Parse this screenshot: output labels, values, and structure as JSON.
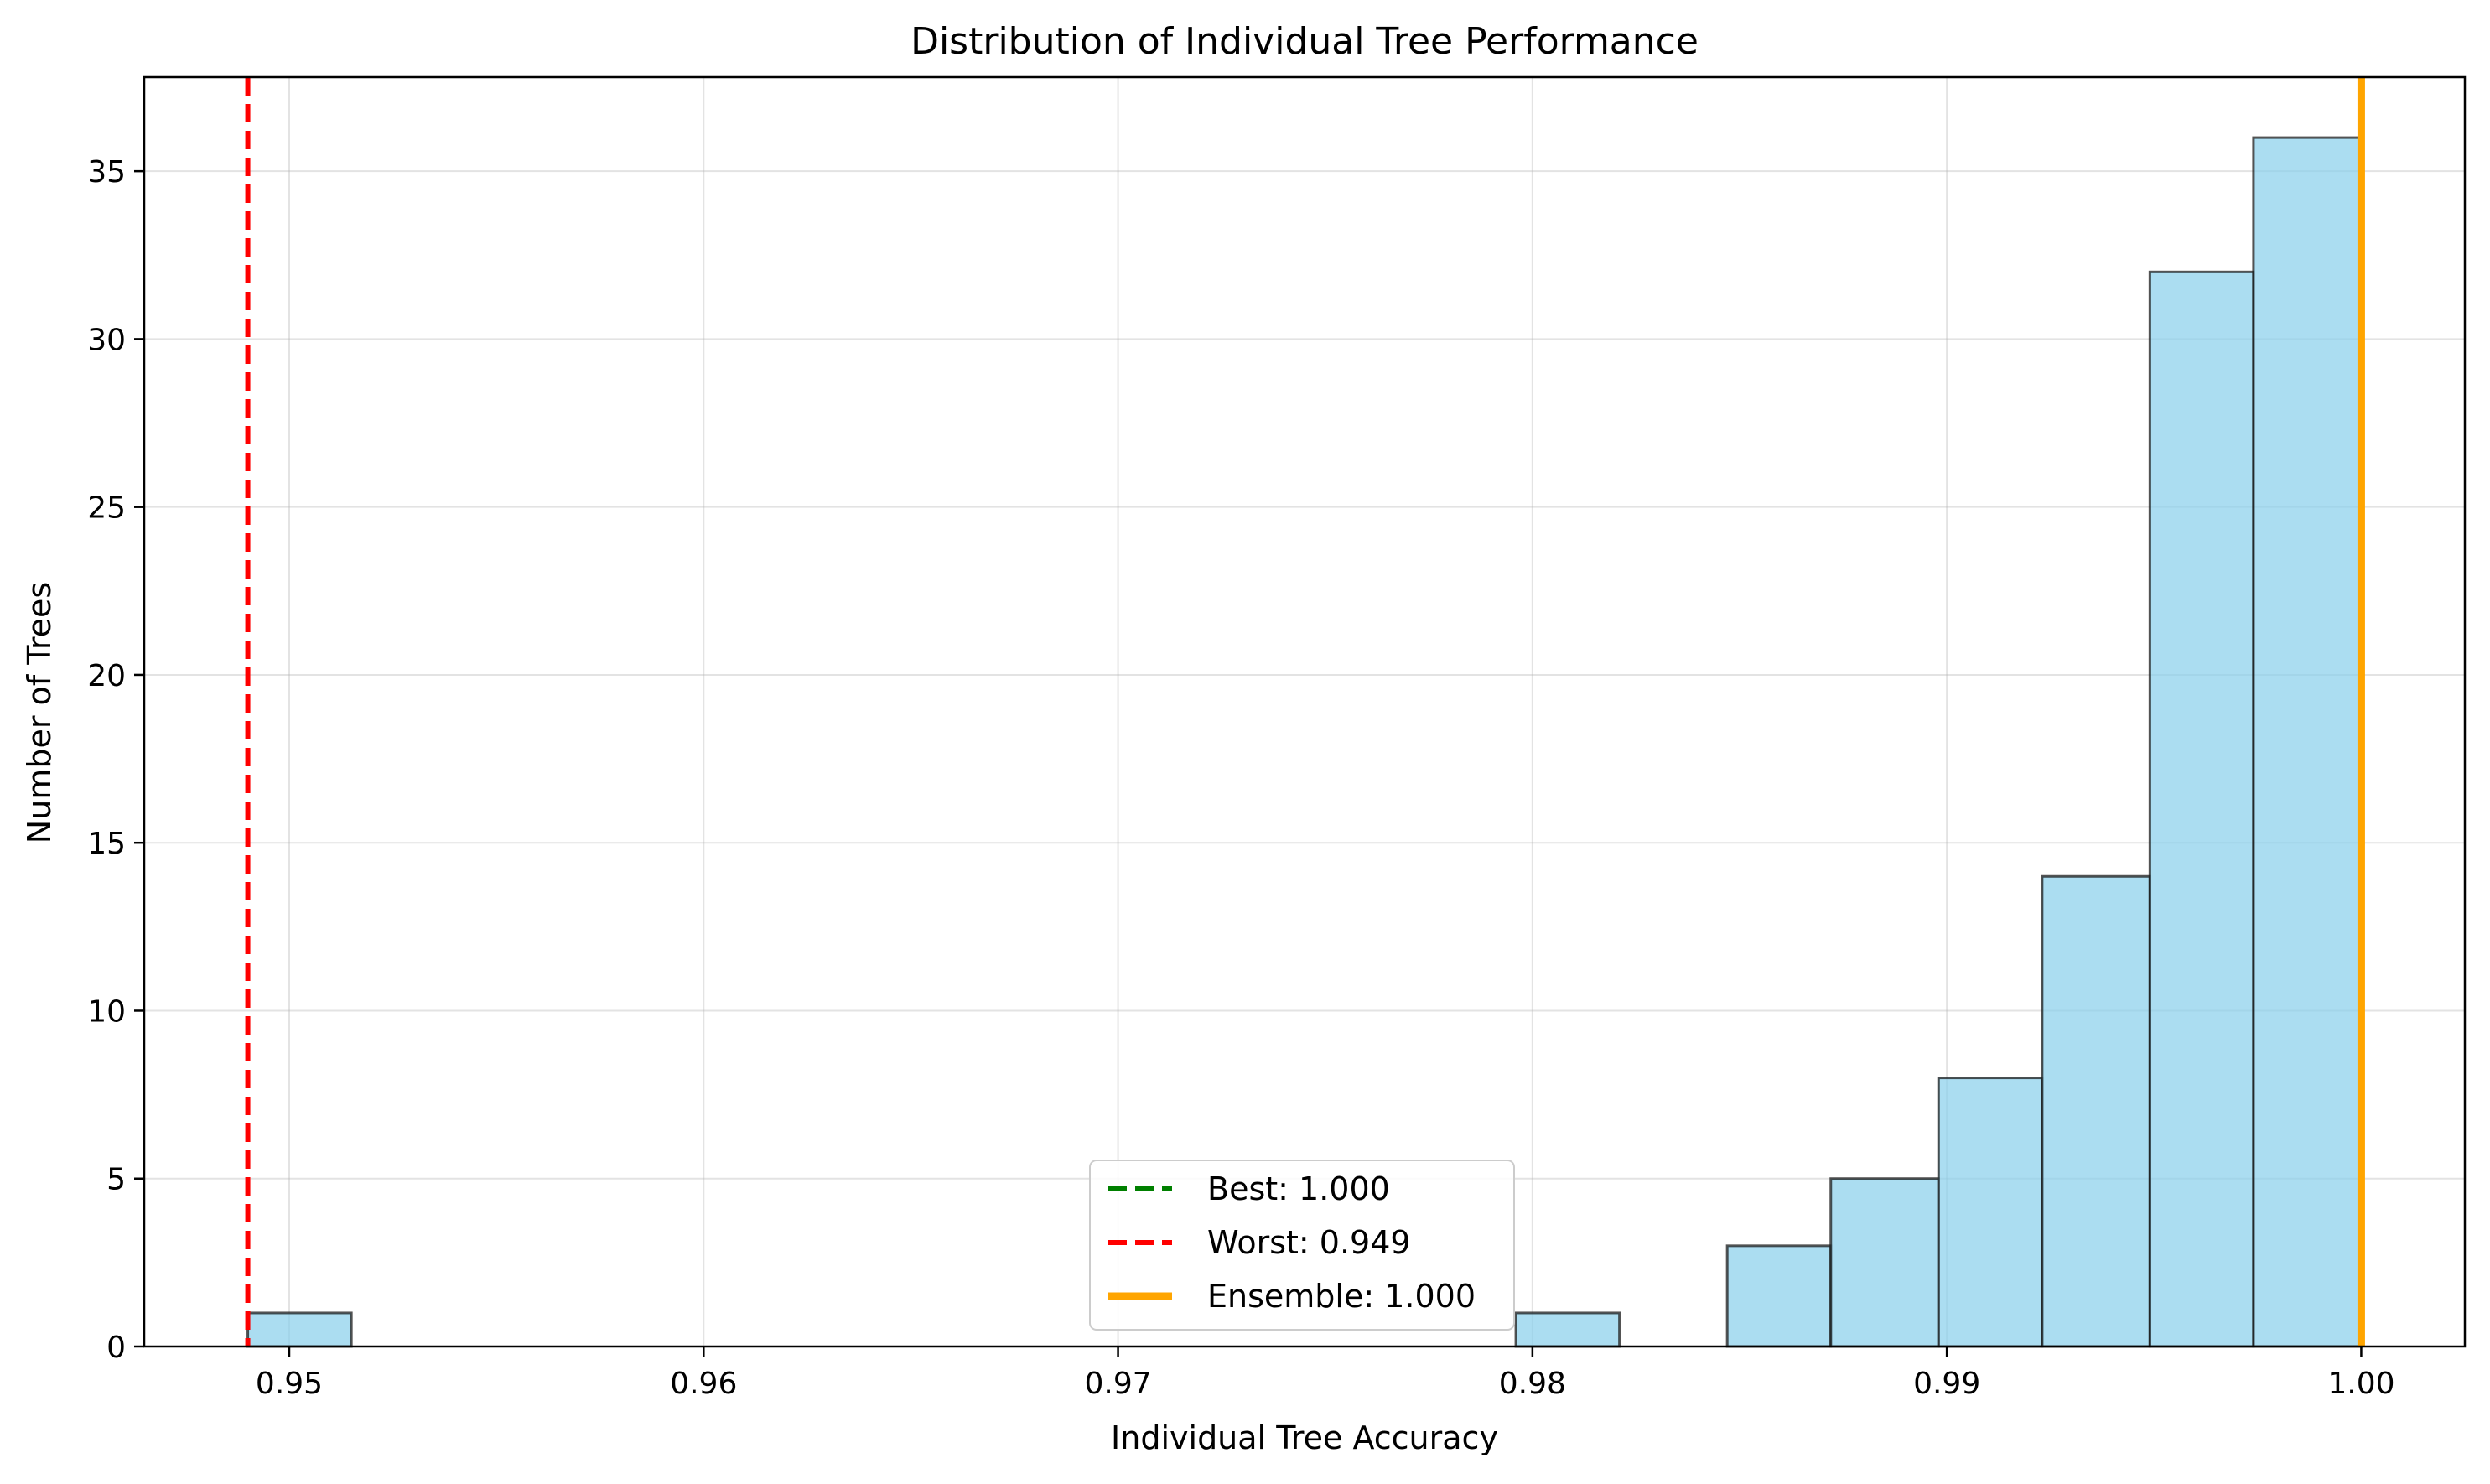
{
  "chart_data": {
    "type": "bar",
    "title": "Distribution of Individual Tree Performance",
    "xlabel": "Individual Tree Accuracy",
    "ylabel": "Number of Trees",
    "xlim": [
      0.9465,
      1.0025
    ],
    "ylim": [
      0,
      37.8
    ],
    "xticks": [
      0.95,
      0.96,
      0.97,
      0.98,
      0.99,
      1.0
    ],
    "xtick_labels": [
      "0.95",
      "0.96",
      "0.97",
      "0.98",
      "0.99",
      "1.00"
    ],
    "yticks": [
      0,
      5,
      10,
      15,
      20,
      25,
      30,
      35
    ],
    "ytick_labels": [
      "0",
      "5",
      "10",
      "15",
      "20",
      "25",
      "30",
      "35"
    ],
    "grid": true,
    "bins": [
      {
        "x0": 0.949,
        "x1": 0.9515,
        "count": 1
      },
      {
        "x0": 0.9515,
        "x1": 0.9541,
        "count": 0
      },
      {
        "x0": 0.9541,
        "x1": 0.9566,
        "count": 0
      },
      {
        "x0": 0.9566,
        "x1": 0.9592,
        "count": 0
      },
      {
        "x0": 0.9592,
        "x1": 0.9617,
        "count": 0
      },
      {
        "x0": 0.9617,
        "x1": 0.9643,
        "count": 0
      },
      {
        "x0": 0.9643,
        "x1": 0.9668,
        "count": 0
      },
      {
        "x0": 0.9668,
        "x1": 0.9694,
        "count": 0
      },
      {
        "x0": 0.9694,
        "x1": 0.9719,
        "count": 0
      },
      {
        "x0": 0.9719,
        "x1": 0.9745,
        "count": 0
      },
      {
        "x0": 0.9745,
        "x1": 0.977,
        "count": 0
      },
      {
        "x0": 0.977,
        "x1": 0.9796,
        "count": 0
      },
      {
        "x0": 0.9796,
        "x1": 0.9821,
        "count": 1
      },
      {
        "x0": 0.9821,
        "x1": 0.9847,
        "count": 0
      },
      {
        "x0": 0.9847,
        "x1": 0.9872,
        "count": 3
      },
      {
        "x0": 0.9872,
        "x1": 0.9898,
        "count": 5
      },
      {
        "x0": 0.9898,
        "x1": 0.9923,
        "count": 8
      },
      {
        "x0": 0.9923,
        "x1": 0.9949,
        "count": 14
      },
      {
        "x0": 0.9949,
        "x1": 0.9974,
        "count": 32
      },
      {
        "x0": 0.9974,
        "x1": 1.0,
        "count": 36
      }
    ],
    "bar_color": "#87CEEB",
    "bar_edge_color": "#1a1a1a",
    "reference_lines": [
      {
        "name": "Best: 1.000",
        "x": 1.0,
        "color": "#008000",
        "style": "dashed"
      },
      {
        "name": "Worst: 0.949",
        "x": 0.949,
        "color": "#ff0000",
        "style": "dashed"
      },
      {
        "name": "Ensemble: 1.000",
        "x": 1.0,
        "color": "#ffa500",
        "style": "solid"
      }
    ],
    "legend_placement": "bottom-center"
  }
}
